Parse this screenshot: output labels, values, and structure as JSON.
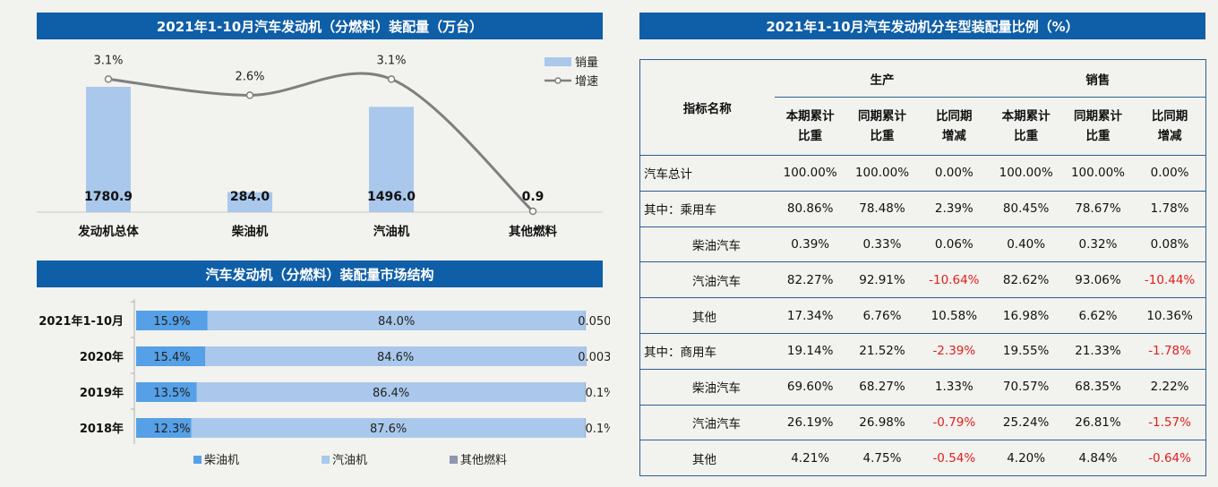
{
  "title_volume": "2021年1-10月汽车发动机（分燃料）装配量（万台）",
  "title_structure": "汽车发动机（分燃料）装配量市场结构",
  "title_ratio": "2021年1-10月汽车发动机分车型装配量比例（%）",
  "colors": {
    "title_bg": "#0f5ea8",
    "bar": "#a9c8ec",
    "line": "#7f7f7f",
    "diesel": "#55a0e6",
    "gasoline": "#a9c8ec",
    "other": "#8f97b0",
    "negative": "#e02020",
    "table_border": "#2e5e92"
  },
  "chart_data": [
    {
      "type": "bar",
      "categories": [
        "发动机总体",
        "柴油机",
        "汽油机",
        "其他燃料"
      ],
      "series": [
        {
          "name": "销量",
          "values": [
            1780.9,
            284.0,
            1496.0,
            0.9
          ],
          "labels": [
            "1780.9",
            "284.0",
            "1496.0",
            "0.9"
          ]
        },
        {
          "name": "增速",
          "type": "line",
          "values": [
            3.1,
            2.6,
            3.1,
            -1.0
          ],
          "labels": [
            "3.1%",
            "2.6%",
            "3.1%",
            ""
          ]
        }
      ],
      "legend_position": "top-right",
      "grid": false
    },
    {
      "type": "bar",
      "orientation": "horizontal",
      "stacked": true,
      "categories": [
        "2021年1-10月",
        "2020年",
        "2019年",
        "2018年"
      ],
      "series": [
        {
          "name": "柴油机",
          "values": [
            15.9,
            15.4,
            13.5,
            12.3
          ],
          "labels": [
            "15.9%",
            "15.4%",
            "13.5%",
            "12.3%"
          ]
        },
        {
          "name": "汽油机",
          "values": [
            84.0,
            84.6,
            86.4,
            87.6
          ],
          "labels": [
            "84.0%",
            "84.6%",
            "86.4%",
            "87.6%"
          ]
        },
        {
          "name": "其他燃料",
          "values": [
            0.05,
            0.003,
            0.1,
            0.1
          ],
          "labels": [
            "0.050%",
            "0.003%",
            "0.1%",
            "0.1%"
          ]
        }
      ],
      "legend_position": "bottom",
      "grid": false
    }
  ],
  "ratio_table": {
    "header": {
      "indicator": "指标名称",
      "group_production": "生产",
      "group_sales": "销售",
      "cols": [
        "本期累计\n比重",
        "同期累计\n比重",
        "比同期\n增减",
        "本期累计\n比重",
        "同期累计\n比重",
        "比同期\n增减"
      ]
    },
    "rows": [
      {
        "name": "汽车总计",
        "sub": false,
        "values": [
          "100.00%",
          "100.00%",
          "0.00%",
          "100.00%",
          "100.00%",
          "0.00%"
        ]
      },
      {
        "name": "其中：乘用车",
        "sub": false,
        "values": [
          "80.86%",
          "78.48%",
          "2.39%",
          "80.45%",
          "78.67%",
          "1.78%"
        ]
      },
      {
        "name": "柴油汽车",
        "sub": true,
        "values": [
          "0.39%",
          "0.33%",
          "0.06%",
          "0.40%",
          "0.32%",
          "0.08%"
        ]
      },
      {
        "name": "汽油汽车",
        "sub": true,
        "values": [
          "82.27%",
          "92.91%",
          "-10.64%",
          "82.62%",
          "93.06%",
          "-10.44%"
        ]
      },
      {
        "name": "其他",
        "sub": true,
        "values": [
          "17.34%",
          "6.76%",
          "10.58%",
          "16.98%",
          "6.62%",
          "10.36%"
        ]
      },
      {
        "name": "其中：商用车",
        "sub": false,
        "values": [
          "19.14%",
          "21.52%",
          "-2.39%",
          "19.55%",
          "21.33%",
          "-1.78%"
        ]
      },
      {
        "name": "柴油汽车",
        "sub": true,
        "values": [
          "69.60%",
          "68.27%",
          "1.33%",
          "70.57%",
          "68.35%",
          "2.22%"
        ]
      },
      {
        "name": "汽油汽车",
        "sub": true,
        "values": [
          "26.19%",
          "26.98%",
          "-0.79%",
          "25.24%",
          "26.81%",
          "-1.57%"
        ]
      },
      {
        "name": "其他",
        "sub": true,
        "values": [
          "4.21%",
          "4.75%",
          "-0.54%",
          "4.20%",
          "4.84%",
          "-0.64%"
        ]
      }
    ]
  }
}
